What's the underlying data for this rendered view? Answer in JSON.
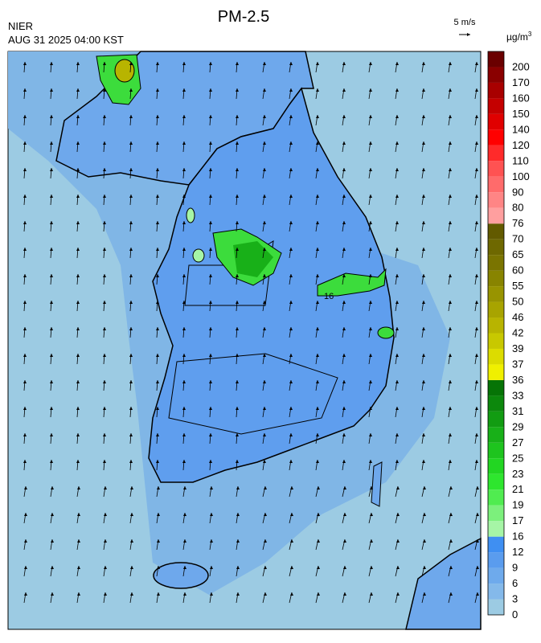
{
  "header": {
    "title": "PM-2.5",
    "source": "NIER",
    "datetime": "AUG 31 2025 04:00 KST",
    "wind_scale": "5 m/s"
  },
  "map": {
    "contour_labels": [
      "16"
    ]
  },
  "legend": {
    "unit": "µg/m",
    "unit_power": "3",
    "ticks": [
      "0",
      "3",
      "6",
      "9",
      "12",
      "16",
      "17",
      "19",
      "21",
      "23",
      "25",
      "27",
      "29",
      "31",
      "33",
      "36",
      "37",
      "39",
      "42",
      "46",
      "50",
      "55",
      "60",
      "65",
      "70",
      "76",
      "80",
      "90",
      "100",
      "110",
      "120",
      "140",
      "150",
      "160",
      "170",
      "200"
    ],
    "colors": [
      "#9ccbe3",
      "#84b9ea",
      "#6eaaec",
      "#5a9cee",
      "#3f8ff2",
      "#a6f5a6",
      "#7cf07c",
      "#50ec50",
      "#2ee62e",
      "#22d622",
      "#1ec41e",
      "#18b018",
      "#129c12",
      "#0c880c",
      "#067406",
      "#f0f000",
      "#dcdc00",
      "#c8c800",
      "#b8b400",
      "#a8a400",
      "#989400",
      "#888400",
      "#7a7400",
      "#6e6800",
      "#625a00",
      "#ff9f9f",
      "#ff8585",
      "#ff6b6b",
      "#ff5252",
      "#ff2a2a",
      "#ff0000",
      "#e00000",
      "#c40000",
      "#a80000",
      "#8a0000",
      "#6a0000"
    ]
  }
}
